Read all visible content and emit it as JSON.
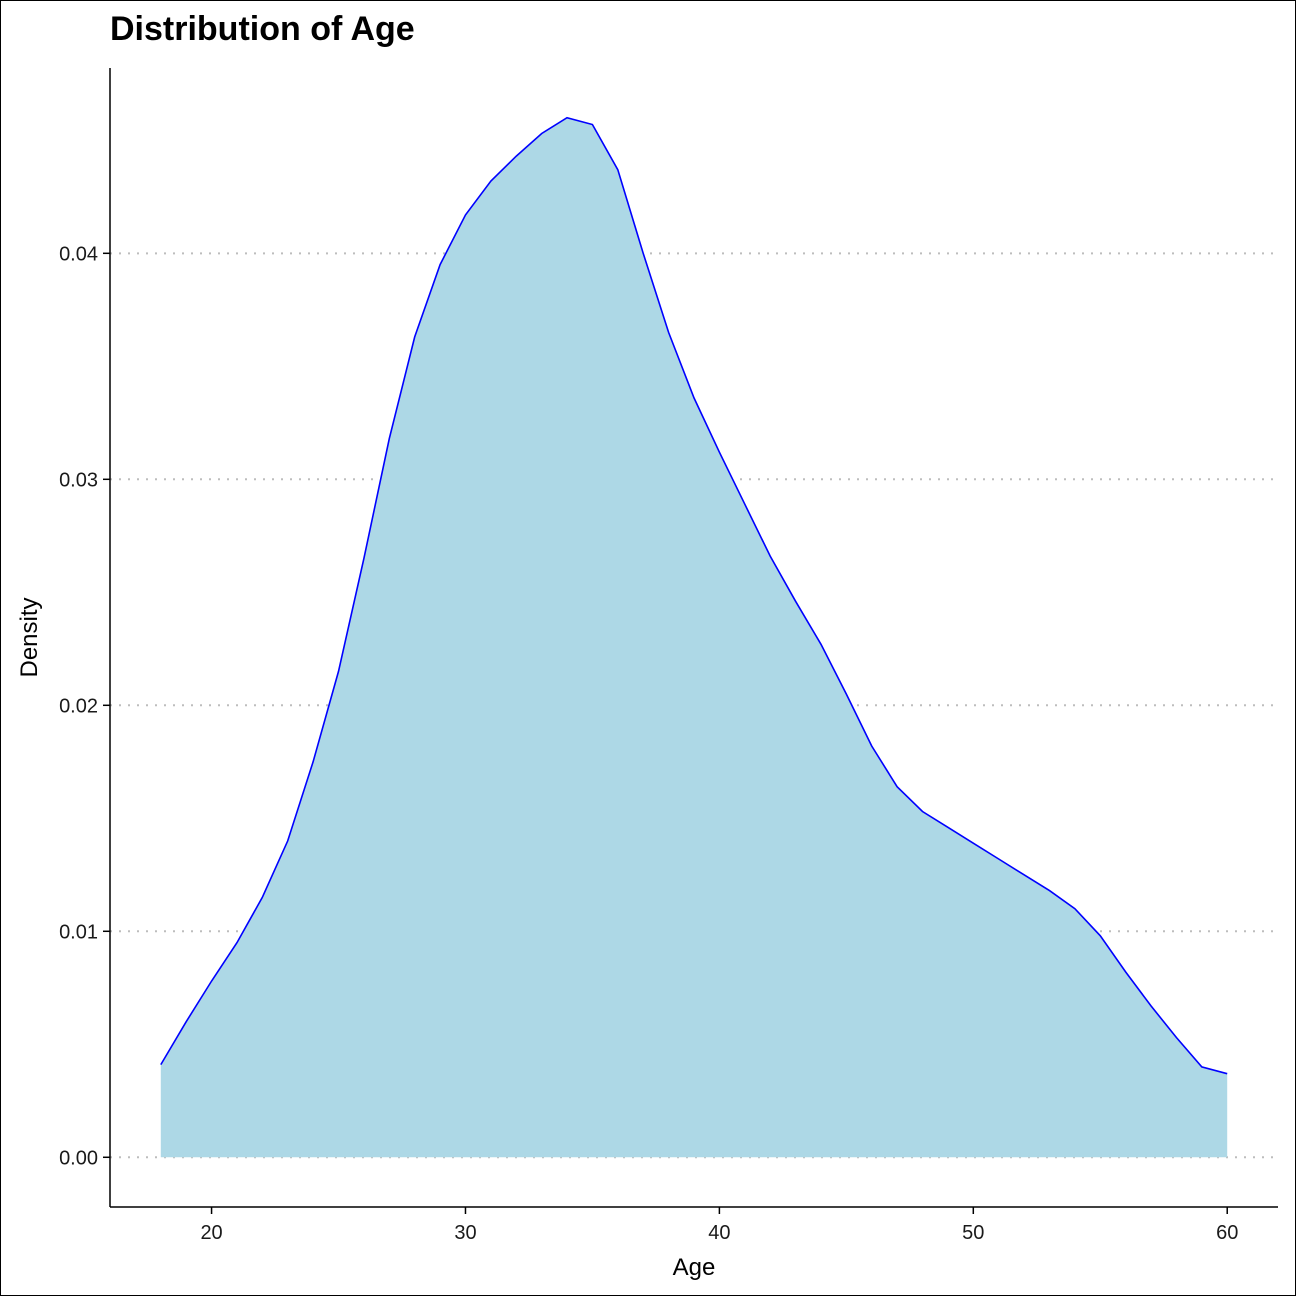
{
  "chart_data": {
    "type": "area",
    "title": "Distribution of Age",
    "xlabel": "Age",
    "ylabel": "Density",
    "xlim": [
      16,
      62
    ],
    "ylim": [
      -0.0022,
      0.0482
    ],
    "x_ticks": [
      20,
      30,
      40,
      50,
      60
    ],
    "x_tick_labels": [
      "20",
      "30",
      "40",
      "50",
      "60"
    ],
    "y_ticks": [
      0.0,
      0.01,
      0.02,
      0.03,
      0.04
    ],
    "y_tick_labels": [
      "0.00",
      "0.01",
      "0.02",
      "0.03",
      "0.04"
    ],
    "grid": "horizontal-dotted",
    "legend": "none",
    "fill_color": "#add8e6",
    "line_color": "#0000ff",
    "x": [
      18,
      19,
      20,
      21,
      22,
      23,
      24,
      25,
      26,
      27,
      28,
      29,
      30,
      31,
      32,
      33,
      34,
      35,
      36,
      37,
      38,
      39,
      40,
      41,
      42,
      43,
      44,
      45,
      46,
      47,
      48,
      49,
      50,
      51,
      52,
      53,
      54,
      55,
      56,
      57,
      58,
      59,
      60
    ],
    "y": [
      0.0041,
      0.006,
      0.0078,
      0.0095,
      0.0115,
      0.014,
      0.0175,
      0.0215,
      0.0265,
      0.0318,
      0.0363,
      0.0395,
      0.0417,
      0.0432,
      0.0443,
      0.0453,
      0.046,
      0.0457,
      0.0437,
      0.04,
      0.0365,
      0.0336,
      0.0312,
      0.0289,
      0.0266,
      0.0246,
      0.0227,
      0.0205,
      0.0182,
      0.0164,
      0.0153,
      0.0146,
      0.0139,
      0.0132,
      0.0125,
      0.0118,
      0.011,
      0.0098,
      0.0082,
      0.0067,
      0.0053,
      0.004,
      0.0037
    ]
  }
}
